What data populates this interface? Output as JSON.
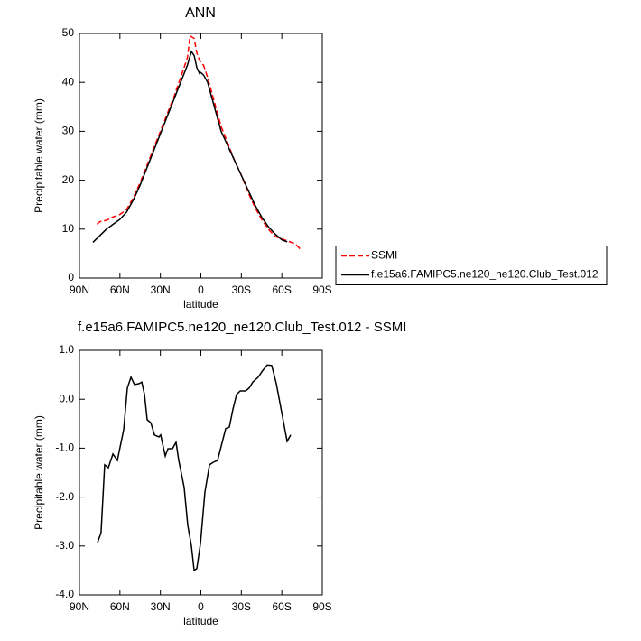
{
  "chart_data": [
    {
      "type": "line",
      "title": "ANN",
      "xlabel": "latitude",
      "ylabel": "Precipitable water (mm)",
      "xlim": [
        90,
        -90
      ],
      "xticks": [
        {
          "value": 90,
          "label": "90N"
        },
        {
          "value": 60,
          "label": "60N"
        },
        {
          "value": 30,
          "label": "30N"
        },
        0,
        {
          "value": -30,
          "label": "30S"
        },
        {
          "value": -60,
          "label": "60S"
        },
        {
          "value": -90,
          "label": "90S"
        }
      ],
      "ylim": [
        0,
        50
      ],
      "yticks": [
        0,
        10,
        20,
        30,
        40,
        50
      ],
      "legend": "right",
      "series": [
        {
          "name": "SSMI",
          "color": "#ff0000",
          "line_style": "dashed",
          "x": [
            77,
            75,
            70,
            65,
            60,
            55,
            50,
            45,
            40,
            35,
            30,
            25,
            20,
            15,
            10,
            8,
            5,
            3,
            1,
            0,
            -2,
            -5,
            -10,
            -15,
            -20,
            -25,
            -30,
            -35,
            -40,
            -45,
            -50,
            -55,
            -60,
            -65,
            -70,
            -74
          ],
          "values": [
            11,
            11.5,
            11.8,
            12.5,
            13,
            14,
            16.5,
            19.5,
            23,
            26.5,
            30,
            33.5,
            37,
            41,
            45,
            49.5,
            49,
            46,
            44.5,
            44,
            43.5,
            41,
            36,
            31,
            27.5,
            24,
            21,
            17.5,
            14.5,
            12,
            10,
            8.5,
            8,
            7.5,
            7,
            5.8
          ]
        },
        {
          "name": "f.e15a6.FAMIPC5.ne120_ne120.Club_Test.012",
          "color": "#000000",
          "line_style": "solid",
          "x": [
            80,
            70,
            60,
            55,
            50,
            45,
            40,
            35,
            30,
            25,
            20,
            15,
            10,
            7,
            5,
            3,
            1,
            0,
            -2,
            -5,
            -10,
            -15,
            -20,
            -25,
            -30,
            -35,
            -40,
            -45,
            -50,
            -55,
            -60,
            -64
          ],
          "values": [
            7.3,
            10,
            12,
            13.5,
            16,
            19,
            22.5,
            26,
            29.5,
            33,
            36.5,
            40,
            43.5,
            46.3,
            45.5,
            43,
            41.8,
            42,
            41.5,
            40,
            35,
            30,
            27,
            24,
            21,
            18,
            15,
            12.5,
            10.5,
            9,
            7.8,
            7.4
          ]
        }
      ]
    },
    {
      "type": "line",
      "title": "f.e15a6.FAMIPC5.ne120_ne120.Club_Test.012 - SSMI",
      "xlabel": "latitude",
      "ylabel": "Precipitable water (mm)",
      "xlim": [
        90,
        -90
      ],
      "xticks": [
        {
          "value": 90,
          "label": "90N"
        },
        {
          "value": 60,
          "label": "60N"
        },
        {
          "value": 30,
          "label": "30N"
        },
        0,
        {
          "value": -30,
          "label": "30S"
        },
        {
          "value": -60,
          "label": "60S"
        },
        {
          "value": -90,
          "label": "90S"
        }
      ],
      "ylim": [
        -4,
        1
      ],
      "yticks": [
        {
          "value": -4,
          "label": "-4.0"
        },
        {
          "value": -3,
          "label": "-3.0"
        },
        {
          "value": -2,
          "label": "-2.0"
        },
        {
          "value": -1,
          "label": "-1.0"
        },
        {
          "value": 0,
          "label": "0.0"
        },
        {
          "value": 1,
          "label": "1.0"
        }
      ],
      "series": [
        {
          "color": "#000000",
          "line_style": "solid",
          "x": [
            76.6,
            74,
            71.3,
            68.6,
            65.2,
            61.9,
            57.2,
            54.5,
            51.8,
            49.2,
            45.8,
            43.8,
            41.8,
            39.8,
            37.1,
            34.4,
            31.1,
            29.8,
            26.4,
            24.4,
            21.1,
            18.4,
            16.4,
            12.4,
            9.7,
            7,
            5,
            3,
            0.3,
            -3,
            -6.4,
            -9.1,
            -12.4,
            -15.8,
            -18.4,
            -21.1,
            -23.8,
            -26.5,
            -29.2,
            -33.2,
            -35.8,
            -38.5,
            -42.5,
            -45.9,
            -49.2,
            -52.5,
            -55.9,
            -60.6,
            -63.9,
            -66.6
          ],
          "values": [
            -2.93,
            -2.73,
            -1.34,
            -1.4,
            -1.12,
            -1.25,
            -0.62,
            0.23,
            0.45,
            0.3,
            0.32,
            0.35,
            0.1,
            -0.42,
            -0.48,
            -0.73,
            -0.77,
            -0.73,
            -1.16,
            -1.01,
            -1.01,
            -0.88,
            -1.25,
            -1.8,
            -2.58,
            -3.0,
            -3.5,
            -3.46,
            -2.95,
            -1.9,
            -1.34,
            -1.29,
            -1.25,
            -0.88,
            -0.6,
            -0.57,
            -0.2,
            0.1,
            0.17,
            0.17,
            0.23,
            0.35,
            0.45,
            0.59,
            0.7,
            0.69,
            0.32,
            -0.37,
            -0.86,
            -0.73
          ]
        }
      ]
    }
  ]
}
